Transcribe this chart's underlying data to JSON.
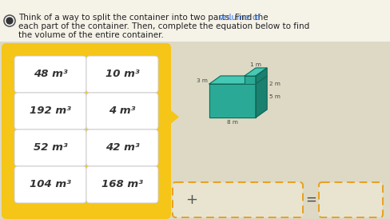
{
  "bg_top": "#f0ede0",
  "bg_bottom": "#ddd9c4",
  "panel_bg": "#f5c518",
  "cell_bg": "#ffffff",
  "cell_border": "#cccccc",
  "rows": [
    [
      "48 m³",
      "10 m³"
    ],
    [
      "192 m³",
      "4 m³"
    ],
    [
      "52 m³",
      "42 m³"
    ],
    [
      "104 m³",
      "168 m³"
    ]
  ],
  "shape_front": "#2aaa96",
  "shape_top": "#45c8b4",
  "shape_right": "#1a8070",
  "shape_edge": "#116655",
  "dashed_color": "#e8a020",
  "dashed_fill": "#e8e4d0",
  "title_line1_normal": "Think of a way to split the container into two parts. Find the ",
  "title_line1_blue": "volume of",
  "title_line2": "each part of the container. Then, complete the equation below to find",
  "title_line3": "the volume of the entire container.",
  "dim_1m": "1 m",
  "dim_5m": "5 m",
  "dim_2m": "2 m",
  "dim_3m": "3 m",
  "dim_8m": "8 m",
  "font_size_title": 7.5,
  "font_size_cell": 9.5,
  "font_size_dim": 5.2
}
